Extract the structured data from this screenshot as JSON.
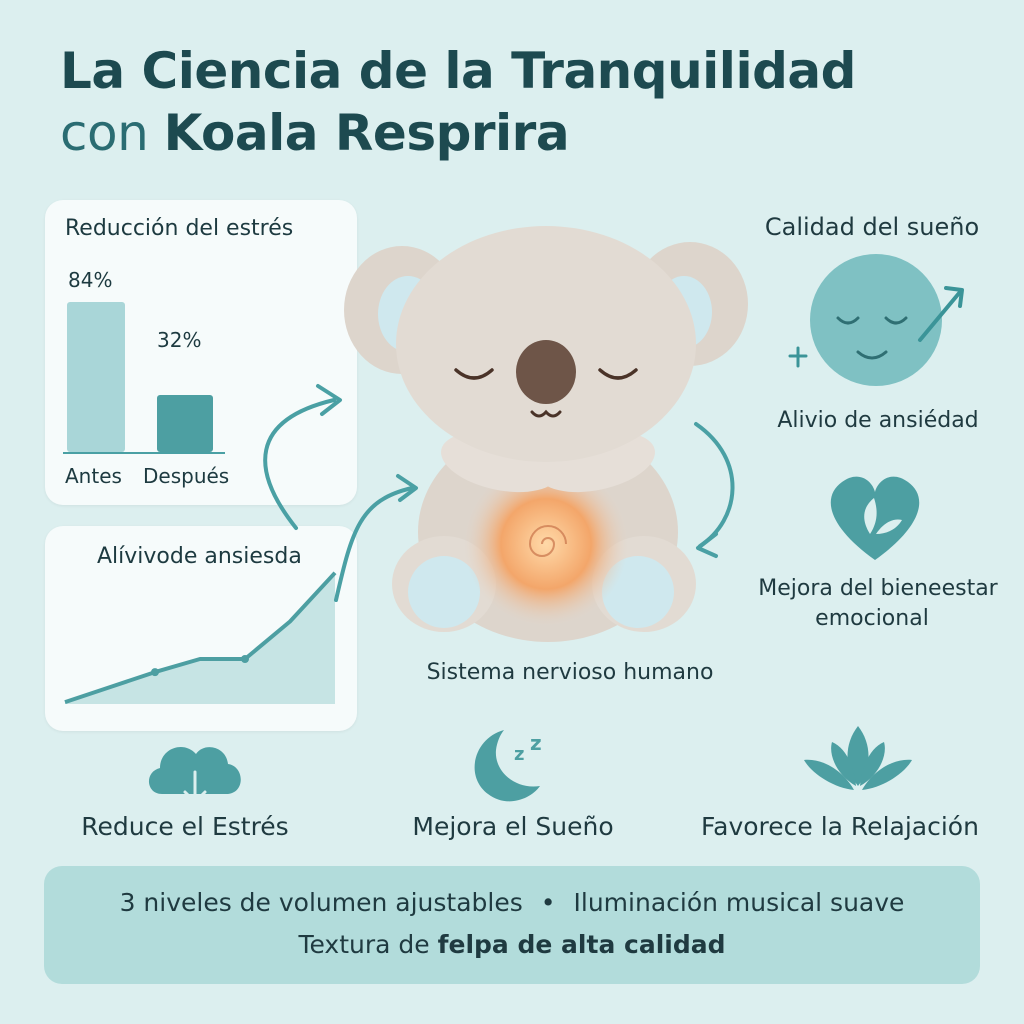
{
  "title": {
    "line1": "La Ciencia de la Tranquilidad",
    "line2_prefix": "con ",
    "line2_brand": "Koala Resprira"
  },
  "stress_card": {
    "title": "Reducción del estrés",
    "chart_data": {
      "type": "bar",
      "categories": [
        "Antes",
        "Después"
      ],
      "values": [
        84,
        32
      ],
      "value_labels": [
        "84%",
        "32%"
      ],
      "ylim": [
        0,
        100
      ]
    }
  },
  "anxiety_card": {
    "title": "Alívivode ansiesda",
    "chart_data": {
      "type": "area",
      "x": [
        0,
        1,
        2,
        3,
        4,
        5,
        6
      ],
      "values": [
        2,
        18,
        34,
        48,
        48,
        88,
        140
      ],
      "ylim": [
        0,
        160
      ]
    }
  },
  "right": {
    "sleep_title": "Calidad del sueño",
    "anxiety_relief": "Alivio de ansiédad",
    "wellbeing_line1": "Mejora del bieneestar",
    "wellbeing_line2": "emocional"
  },
  "center_caption": "Sistema nervioso humano",
  "features": [
    {
      "label": "Reduce el Estrés",
      "icon": "cloud-download-icon"
    },
    {
      "label": "Mejora el Sueño",
      "icon": "moon-zzz-icon"
    },
    {
      "label": "Favorece la Relajación",
      "icon": "lotus-icon"
    }
  ],
  "footer": {
    "item1": "3 niveles de volumen ajustables",
    "separator": "•",
    "item2": "Iluminación musical suave",
    "item3_prefix": "Textura de ",
    "item3_bold": "felpa de alta calidad"
  },
  "colors": {
    "background": "#dcefef",
    "accent": "#4aa0a4",
    "accent_light": "#a9d6d8",
    "title": "#1d4a50",
    "glow": "#f3a66a"
  }
}
